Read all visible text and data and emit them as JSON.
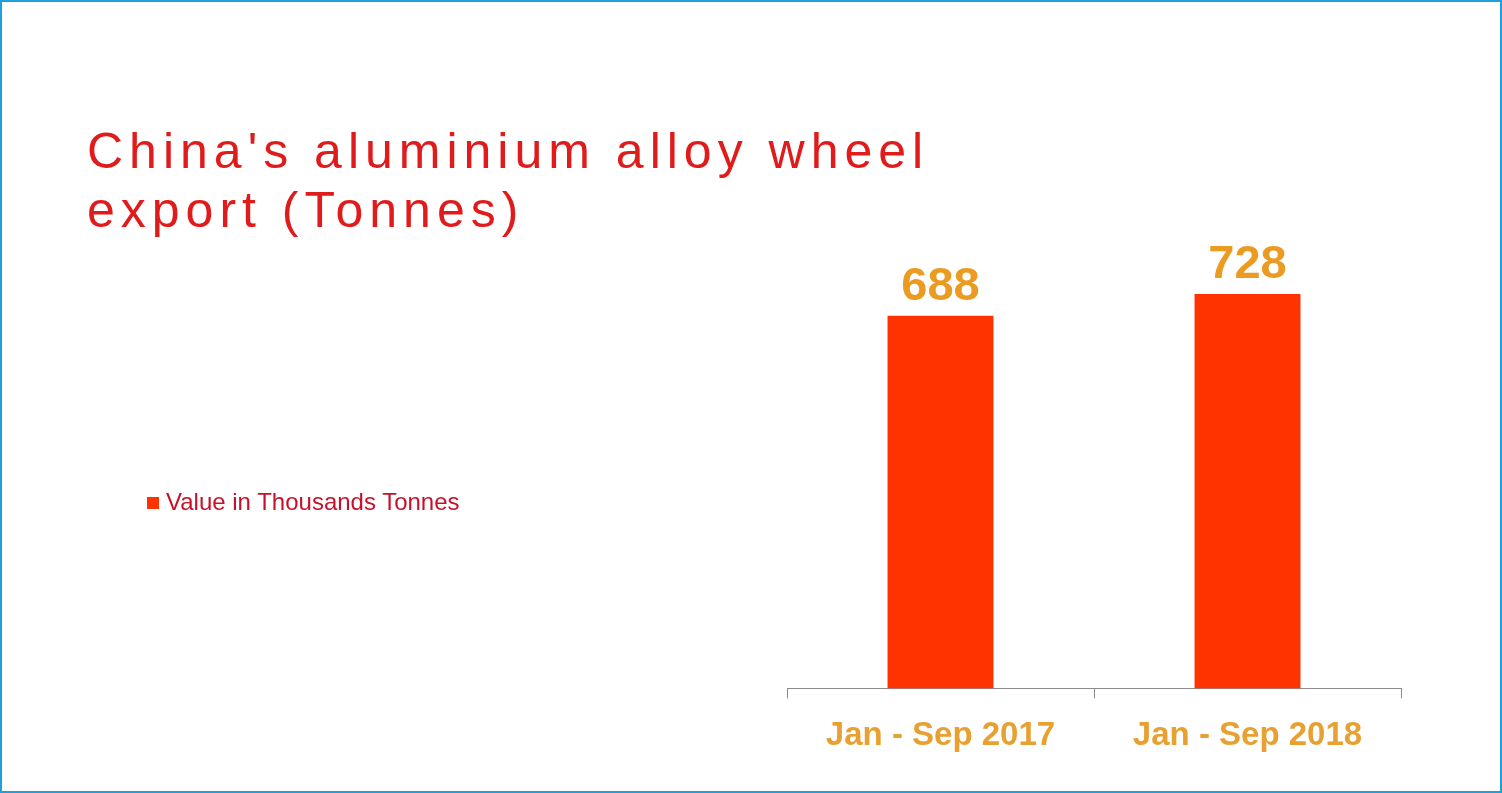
{
  "chart_data": {
    "type": "bar",
    "title": "China's aluminium alloy wheel export (Tonnes)",
    "categories": [
      "Jan - Sep 2017",
      "Jan - Sep 2018"
    ],
    "series": [
      {
        "name": "Value in Thousands Tonnes",
        "color": "#ff3300",
        "values": [
          688,
          728
        ]
      }
    ],
    "tick_labels": "x",
    "data_labels": true,
    "legend": "left"
  }
}
